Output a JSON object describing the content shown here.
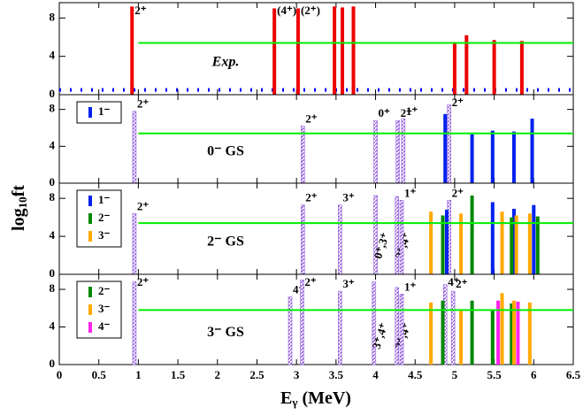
{
  "chart_data": [
    {
      "type": "bar",
      "panel_label": "Exp.",
      "ylim": [
        0,
        9.6
      ],
      "yticks": [
        0,
        4,
        8
      ],
      "ref_line": 5.4,
      "ref_color": "#00ee00",
      "baseline": 0.5,
      "baseline_color": "#0000ff",
      "series": [
        {
          "color": "#ee0000",
          "x": [
            0.92,
            2.72,
            3.02,
            3.48,
            3.58,
            3.72,
            5.0,
            5.15,
            5.5,
            5.85
          ],
          "values": [
            9.2,
            9.0,
            9.0,
            9.2,
            9.1,
            9.2,
            5.5,
            6.2,
            5.7,
            5.6
          ],
          "labels": [
            "2⁺",
            "(4⁺)",
            "(2⁺)",
            null,
            null,
            null,
            null,
            null,
            null,
            null
          ]
        }
      ]
    },
    {
      "type": "bar",
      "panel_label": "0⁻ GS",
      "ylim": [
        0,
        9.6
      ],
      "yticks": [
        0,
        4,
        8
      ],
      "ref_line": 5.4,
      "ref_color": "#00ee00",
      "series": [
        {
          "color": "#9966dd",
          "hatch": true,
          "x": [
            0.95,
            3.08,
            4.0,
            4.28,
            4.35,
            4.93
          ],
          "values": [
            7.8,
            6.2,
            6.8,
            6.8,
            7.0,
            8.5
          ],
          "labels": [
            "2⁺",
            "2⁺",
            "0⁺",
            "2⁺",
            "1⁺",
            "2⁺"
          ]
        },
        {
          "name": "1⁻",
          "color": "#0022ee",
          "x": [
            4.88,
            5.22,
            5.48,
            5.75,
            5.98
          ],
          "values": [
            7.5,
            5.3,
            5.7,
            5.6,
            7.0
          ]
        }
      ]
    },
    {
      "type": "bar",
      "panel_label": "2⁻ GS",
      "ylim": [
        0,
        9.6
      ],
      "yticks": [
        0,
        4,
        8
      ],
      "ref_line": 5.4,
      "ref_color": "#00ee00",
      "series": [
        {
          "color": "#9966dd",
          "hatch": true,
          "x": [
            0.95,
            3.08,
            3.55,
            4.0,
            4.27,
            4.33,
            4.93
          ],
          "values": [
            6.4,
            7.3,
            7.3,
            8.3,
            8.2,
            7.8,
            7.8
          ],
          "labels": [
            "2⁺",
            "2⁺",
            "3⁺",
            "0⁺,3⁺",
            "2⁺,4⁺",
            "1⁺",
            "2⁺"
          ]
        },
        {
          "name": "1⁻",
          "color": "#0022ee",
          "x": [
            4.9,
            5.48,
            5.75,
            6.0
          ],
          "values": [
            6.8,
            7.6,
            6.9,
            7.3
          ]
        },
        {
          "name": "2⁻",
          "color": "#008800",
          "x": [
            4.85,
            5.22,
            5.72,
            6.05
          ],
          "values": [
            6.2,
            8.3,
            6.0,
            6.1
          ]
        },
        {
          "name": "3⁻",
          "color": "#ffaa00",
          "x": [
            4.7,
            5.08,
            5.6,
            5.78,
            5.95
          ],
          "values": [
            6.6,
            6.4,
            6.6,
            6.2,
            6.4
          ]
        }
      ]
    },
    {
      "type": "bar",
      "panel_label": "3⁻ GS",
      "ylim": [
        0,
        9.6
      ],
      "yticks": [
        0,
        4,
        8
      ],
      "ref_line": 5.8,
      "ref_color": "#00ee00",
      "series": [
        {
          "color": "#9966dd",
          "hatch": true,
          "x": [
            0.95,
            2.92,
            3.07,
            3.55,
            3.98,
            4.27,
            4.33,
            4.88,
            4.98
          ],
          "values": [
            8.8,
            7.2,
            9.0,
            7.8,
            8.8,
            8.2,
            7.5,
            8.5,
            7.8
          ],
          "labels": [
            "2⁺",
            "4⁺",
            "2⁺",
            "3⁺",
            "3⁺,4⁺",
            "2⁺,4⁺",
            "1⁺",
            "4⁺",
            "2⁺"
          ]
        },
        {
          "name": "2⁻",
          "color": "#008800",
          "x": [
            4.85,
            5.22,
            5.48,
            5.72
          ],
          "values": [
            6.8,
            6.8,
            5.8,
            6.5
          ]
        },
        {
          "name": "3⁻",
          "color": "#ffaa00",
          "x": [
            4.7,
            5.08,
            5.6,
            5.75,
            5.95
          ],
          "values": [
            6.6,
            5.8,
            7.6,
            6.8,
            6.6
          ]
        },
        {
          "name": "4⁻",
          "color": "#ff22ee",
          "x": [
            5.55,
            5.8
          ],
          "values": [
            6.8,
            6.7
          ]
        }
      ]
    }
  ],
  "x_axis": {
    "xlim": [
      0,
      6.5
    ],
    "xticks": [
      0,
      0.5,
      1,
      1.5,
      2,
      2.5,
      3,
      3.5,
      4,
      4.5,
      5,
      5.5,
      6,
      6.5
    ],
    "label_main": "E",
    "label_sub": "γ",
    "label_unit": " (MeV)"
  },
  "y_label": {
    "main": "log",
    "sub": "10",
    "tail": "ft"
  }
}
